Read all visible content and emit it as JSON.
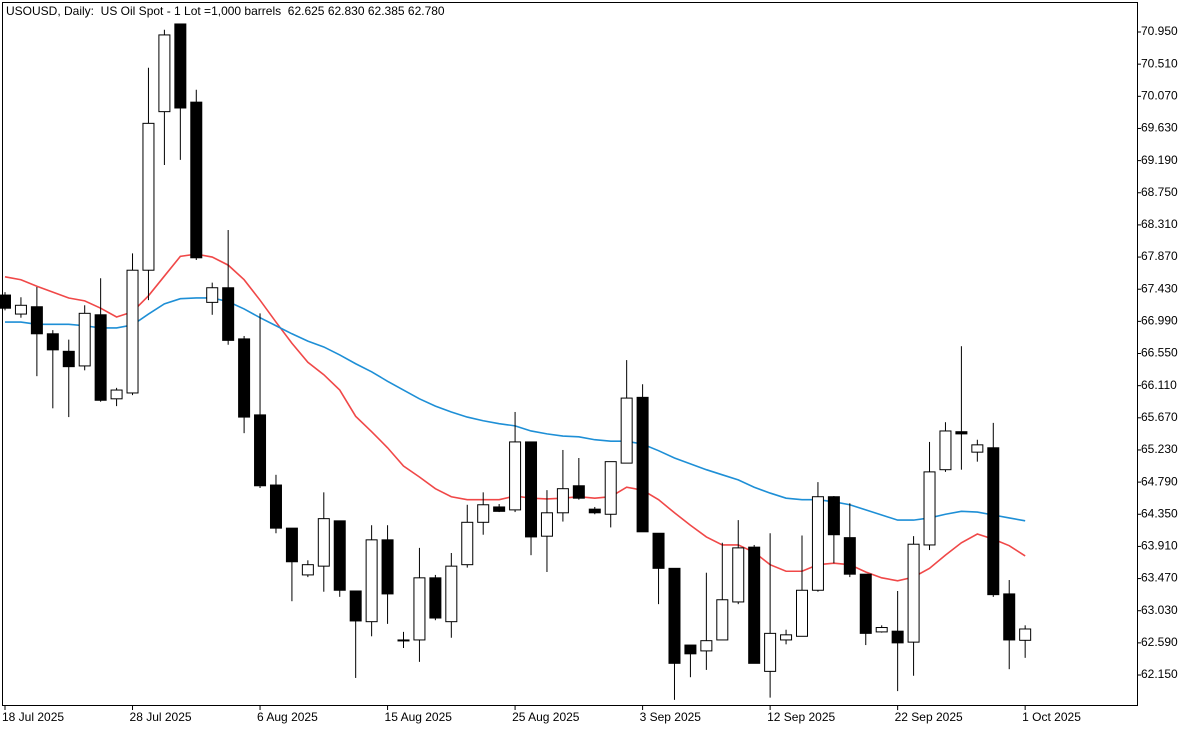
{
  "chart_data": {
    "type": "candlestick",
    "title": "USOUSD, Daily:  US Oil Spot - 1 Lot =1,000 barrels  62.625 62.830 62.385 62.780",
    "categories": [
      "18 Jul 2025",
      null,
      null,
      null,
      null,
      null,
      null,
      null,
      "28 Jul 2025",
      null,
      null,
      null,
      null,
      null,
      null,
      null,
      "6 Aug 2025",
      null,
      null,
      null,
      null,
      null,
      null,
      null,
      "15 Aug 2025",
      null,
      null,
      null,
      null,
      null,
      null,
      null,
      "25 Aug 2025",
      null,
      null,
      null,
      null,
      null,
      null,
      null,
      "3 Sep 2025",
      null,
      null,
      null,
      null,
      null,
      null,
      null,
      "12 Sep 2025",
      null,
      null,
      null,
      null,
      null,
      null,
      null,
      "22 Sep 2025",
      null,
      null,
      null,
      null,
      null,
      null,
      null,
      "1 Oct 2025"
    ],
    "open": [
      67.35,
      67.09,
      67.19,
      66.82,
      66.58,
      66.38,
      67.08,
      65.93,
      66.01,
      67.69,
      69.86,
      71.06,
      69.99,
      67.25,
      67.45,
      66.75,
      65.71,
      64.75,
      64.16,
      63.52,
      63.64,
      64.26,
      63.3,
      62.88,
      64.0,
      62.63,
      62.63,
      63.48,
      62.88,
      63.66,
      64.24,
      64.45,
      64.41,
      65.34,
      64.05,
      64.37,
      64.74,
      64.42,
      64.35,
      65.05,
      65.95,
      64.09,
      63.61,
      62.56,
      62.48,
      62.63,
      63.15,
      63.9,
      62.2,
      62.63,
      62.68,
      63.31,
      64.59,
      64.03,
      63.53,
      62.74,
      62.75,
      62.6,
      63.93,
      64.96,
      65.48,
      65.2,
      65.26,
      63.26,
      62.625
    ],
    "high": [
      67.39,
      67.32,
      67.46,
      66.87,
      66.74,
      67.21,
      67.58,
      66.08,
      67.92,
      70.46,
      70.98,
      71.06,
      70.16,
      67.52,
      68.24,
      66.79,
      67.1,
      64.89,
      64.16,
      63.72,
      64.65,
      64.26,
      63.3,
      64.2,
      64.2,
      62.74,
      63.89,
      63.52,
      63.82,
      64.48,
      64.65,
      64.49,
      65.75,
      65.34,
      64.68,
      65.23,
      65.12,
      64.45,
      65.07,
      66.46,
      66.13,
      64.09,
      63.61,
      62.56,
      63.55,
      63.96,
      64.27,
      63.93,
      64.09,
      62.77,
      64.06,
      64.79,
      64.6,
      64.5,
      63.53,
      62.83,
      63.3,
      64.05,
      65.34,
      65.61,
      66.65,
      65.37,
      65.6,
      63.45,
      62.83
    ],
    "low": [
      67.14,
      67.04,
      66.24,
      65.8,
      65.68,
      66.32,
      65.89,
      65.83,
      65.98,
      67.28,
      69.13,
      69.2,
      67.83,
      67.08,
      66.67,
      65.46,
      64.71,
      64.09,
      63.16,
      63.49,
      63.29,
      63.22,
      62.11,
      62.68,
      62.85,
      62.52,
      62.33,
      62.9,
      62.66,
      63.62,
      64.07,
      64.38,
      64.38,
      63.79,
      63.56,
      64.25,
      64.55,
      64.35,
      64.17,
      65.05,
      64.11,
      63.12,
      61.81,
      62.12,
      62.22,
      62.63,
      63.12,
      62.31,
      61.84,
      62.57,
      62.68,
      63.29,
      63.68,
      63.49,
      62.56,
      62.73,
      61.93,
      62.14,
      63.86,
      64.93,
      64.96,
      65.07,
      63.22,
      62.23,
      62.385
    ],
    "close": [
      67.17,
      67.21,
      66.82,
      66.6,
      66.37,
      67.1,
      65.91,
      66.05,
      67.69,
      69.7,
      70.91,
      69.91,
      67.86,
      67.45,
      66.73,
      65.68,
      64.74,
      64.16,
      63.7,
      63.66,
      64.29,
      63.31,
      62.89,
      64.0,
      63.26,
      62.63,
      63.48,
      62.93,
      63.64,
      64.24,
      64.48,
      64.39,
      65.34,
      64.04,
      64.37,
      64.7,
      64.57,
      64.37,
      65.07,
      65.94,
      64.11,
      63.61,
      62.31,
      62.44,
      62.62,
      63.18,
      63.89,
      62.31,
      62.72,
      62.7,
      63.31,
      64.59,
      64.07,
      63.53,
      62.72,
      62.8,
      62.59,
      63.94,
      64.93,
      65.49,
      65.45,
      65.3,
      63.25,
      62.63,
      62.78
    ],
    "up_color": "#ffffff",
    "down_color": "#000000",
    "moving_averages": [
      {
        "color": "#f04848",
        "values": [
          67.6,
          67.56,
          67.47,
          67.39,
          67.31,
          67.27,
          67.17,
          67.05,
          67.12,
          67.34,
          67.61,
          67.88,
          67.91,
          67.87,
          67.76,
          67.56,
          67.28,
          66.98,
          66.69,
          66.43,
          66.26,
          66.05,
          65.69,
          65.48,
          65.26,
          65.01,
          64.86,
          64.7,
          64.59,
          64.55,
          64.55,
          64.55,
          64.6,
          64.57,
          64.56,
          64.57,
          64.59,
          64.57,
          64.59,
          64.72,
          64.68,
          64.55,
          64.37,
          64.2,
          64.04,
          63.93,
          63.93,
          63.83,
          63.66,
          63.57,
          63.57,
          63.66,
          63.68,
          63.66,
          63.56,
          63.48,
          63.44,
          63.49,
          63.61,
          63.79,
          63.96,
          64.08,
          64.01,
          63.92,
          63.78
        ]
      },
      {
        "color": "#1e8fd6",
        "values": [
          66.98,
          66.98,
          66.95,
          66.95,
          66.95,
          66.93,
          66.9,
          66.9,
          66.94,
          67.09,
          67.23,
          67.3,
          67.31,
          67.31,
          67.26,
          67.16,
          67.04,
          66.93,
          66.82,
          66.72,
          66.64,
          66.53,
          66.41,
          66.3,
          66.17,
          66.05,
          65.93,
          65.83,
          65.75,
          65.68,
          65.63,
          65.59,
          65.56,
          65.49,
          65.45,
          65.42,
          65.41,
          65.37,
          65.35,
          65.35,
          65.31,
          65.22,
          65.12,
          65.04,
          64.96,
          64.89,
          64.82,
          64.72,
          64.64,
          64.57,
          64.55,
          64.55,
          64.52,
          64.48,
          64.41,
          64.34,
          64.27,
          64.27,
          64.3,
          64.35,
          64.39,
          64.38,
          64.34,
          64.3,
          64.26
        ]
      }
    ],
    "ylim": [
      61.726,
      71.388
    ],
    "yticks": [
      {
        "value": 62.15,
        "label": "62.150"
      },
      {
        "value": 62.59,
        "label": "62.590"
      },
      {
        "value": 63.03,
        "label": "63.030"
      },
      {
        "value": 63.47,
        "label": "63.470"
      },
      {
        "value": 63.91,
        "label": "63.910"
      },
      {
        "value": 64.35,
        "label": "64.350"
      },
      {
        "value": 64.79,
        "label": "64.790"
      },
      {
        "value": 65.23,
        "label": "65.230"
      },
      {
        "value": 65.67,
        "label": "65.670"
      },
      {
        "value": 66.11,
        "label": "66.110"
      },
      {
        "value": 66.55,
        "label": "66.550"
      },
      {
        "value": 66.99,
        "label": "66.990"
      },
      {
        "value": 67.43,
        "label": "67.430"
      },
      {
        "value": 67.87,
        "label": "67.870"
      },
      {
        "value": 68.31,
        "label": "68.310"
      },
      {
        "value": 68.75,
        "label": "68.750"
      },
      {
        "value": 69.19,
        "label": "69.190"
      },
      {
        "value": 69.63,
        "label": "69.630"
      },
      {
        "value": 70.07,
        "label": "70.070"
      },
      {
        "value": 70.51,
        "label": "70.510"
      },
      {
        "value": 70.95,
        "label": "70.950"
      }
    ],
    "grid": false
  }
}
